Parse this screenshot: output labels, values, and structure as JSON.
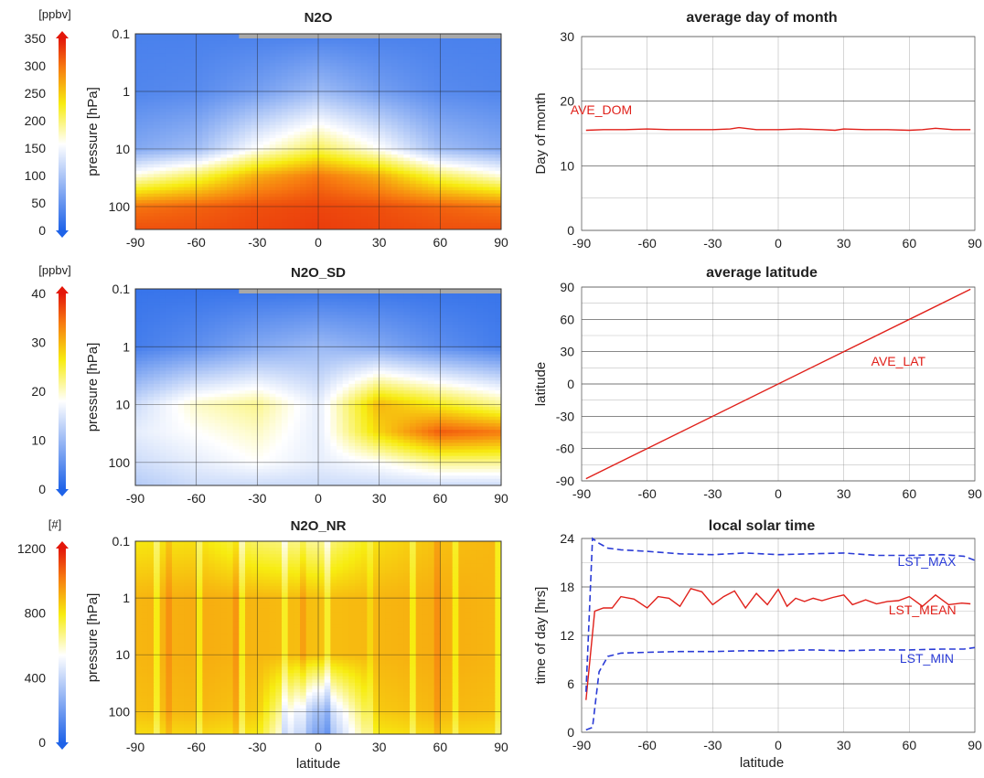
{
  "colors": {
    "heat_low": "#1f63e8",
    "heat_mid": "#ffffff",
    "heat_yellow": "#f7ec10",
    "heat_orange": "#f77a10",
    "heat_high": "#e3170a",
    "line_red": "#e0201a",
    "line_blue": "#2a3bd6",
    "grid": "#8c8c8c",
    "grid_dark": "#222222",
    "missing": "#a8a8a8"
  },
  "chart_data": [
    {
      "id": "n2o",
      "type": "heatmap",
      "title": "N2O",
      "xlabel": "",
      "ylabel": "pressure [hPa]",
      "x_ticks": [
        "-90",
        "-60",
        "-30",
        "0",
        "30",
        "60",
        "90"
      ],
      "y_ticks": [
        "0.1",
        "1",
        "10",
        "100"
      ],
      "xlim": [
        -90,
        90
      ],
      "ylim_pressure_hPa": [
        0.1,
        250
      ],
      "y_scale": "log",
      "colorbar": {
        "unit": "[ppbv]",
        "ticks": [
          "350",
          "300",
          "250",
          "200",
          "150",
          "100",
          "50",
          "0"
        ],
        "range": [
          0,
          350
        ]
      },
      "cells": [
        {
          "p": 0.1,
          "values": [
            30,
            30,
            30,
            30,
            30,
            30,
            30
          ]
        },
        {
          "p": 1,
          "values": [
            35,
            40,
            60,
            90,
            60,
            40,
            35
          ]
        },
        {
          "p": 10,
          "values": [
            70,
            90,
            160,
            210,
            160,
            90,
            70
          ]
        },
        {
          "p": 30,
          "values": [
            170,
            210,
            270,
            300,
            270,
            210,
            170
          ]
        },
        {
          "p": 100,
          "values": [
            300,
            310,
            320,
            325,
            320,
            310,
            300
          ]
        },
        {
          "p": 250,
          "values": [
            320,
            320,
            325,
            330,
            325,
            320,
            320
          ]
        }
      ]
    },
    {
      "id": "n2o_sd",
      "type": "heatmap",
      "title": "N2O_SD",
      "xlabel": "",
      "ylabel": "pressure [hPa]",
      "x_ticks": [
        "-90",
        "-60",
        "-30",
        "0",
        "30",
        "60",
        "90"
      ],
      "y_ticks": [
        "0.1",
        "1",
        "10",
        "100"
      ],
      "xlim": [
        -90,
        90
      ],
      "ylim_pressure_hPa": [
        0.1,
        250
      ],
      "y_scale": "log",
      "colorbar": {
        "unit": "[ppbv]",
        "ticks": [
          "40",
          "30",
          "20",
          "10",
          "0"
        ],
        "range": [
          0,
          40
        ]
      },
      "cells": [
        {
          "p": 0.1,
          "values": [
            2,
            2,
            2,
            2,
            2,
            2,
            2
          ]
        },
        {
          "p": 1,
          "values": [
            3,
            5,
            8,
            10,
            8,
            5,
            3
          ]
        },
        {
          "p": 10,
          "values": [
            14,
            20,
            22,
            16,
            30,
            26,
            22
          ]
        },
        {
          "p": 30,
          "values": [
            16,
            18,
            20,
            16,
            28,
            36,
            34
          ]
        },
        {
          "p": 100,
          "values": [
            14,
            16,
            18,
            16,
            18,
            22,
            22
          ]
        },
        {
          "p": 250,
          "values": [
            12,
            14,
            14,
            14,
            14,
            14,
            14
          ]
        }
      ]
    },
    {
      "id": "n2o_nr",
      "type": "heatmap",
      "title": "N2O_NR",
      "xlabel": "latitude",
      "ylabel": "pressure [hPa]",
      "x_ticks": [
        "-90",
        "-60",
        "-30",
        "0",
        "30",
        "60",
        "90"
      ],
      "y_ticks": [
        "0.1",
        "1",
        "10",
        "100"
      ],
      "xlim": [
        -90,
        90
      ],
      "ylim_pressure_hPa": [
        0.1,
        250
      ],
      "y_scale": "log",
      "colorbar": {
        "unit": "[#]",
        "ticks": [
          "1200",
          "800",
          "400",
          "0"
        ],
        "range": [
          0,
          1200
        ]
      },
      "cells": [
        {
          "p": 0.1,
          "values": [
            800,
            820,
            700,
            650,
            820,
            880,
            900
          ]
        },
        {
          "p": 1,
          "values": [
            900,
            920,
            900,
            880,
            900,
            920,
            900
          ]
        },
        {
          "p": 10,
          "values": [
            900,
            920,
            900,
            880,
            900,
            920,
            900
          ]
        },
        {
          "p": 100,
          "values": [
            880,
            900,
            860,
            300,
            860,
            900,
            880
          ]
        },
        {
          "p": 250,
          "values": [
            820,
            840,
            800,
            200,
            800,
            840,
            820
          ]
        }
      ]
    },
    {
      "id": "dom",
      "type": "line",
      "title": "average day of month",
      "xlabel": "",
      "ylabel": "Day of month",
      "x_ticks": [
        "-90",
        "-60",
        "-30",
        "0",
        "30",
        "60",
        "90"
      ],
      "y_ticks": [
        "0",
        "10",
        "20",
        "30"
      ],
      "xlim": [
        -90,
        90
      ],
      "ylim": [
        0,
        30
      ],
      "series": [
        {
          "name": "AVE_DOM",
          "color": "line_red",
          "dash": false,
          "x": [
            -88,
            -80,
            -70,
            -60,
            -50,
            -40,
            -30,
            -22,
            -18,
            -10,
            0,
            10,
            20,
            26,
            30,
            40,
            50,
            60,
            66,
            72,
            80,
            88
          ],
          "y": [
            15.5,
            15.6,
            15.6,
            15.7,
            15.6,
            15.6,
            15.6,
            15.7,
            15.9,
            15.6,
            15.6,
            15.7,
            15.6,
            15.5,
            15.7,
            15.6,
            15.6,
            15.5,
            15.6,
            15.8,
            15.6,
            15.6
          ]
        }
      ],
      "annotations": [
        {
          "text": "AVE_DOM",
          "x": -81,
          "y": 18.0,
          "color": "line_red"
        }
      ]
    },
    {
      "id": "lat",
      "type": "line",
      "title": "average latitude",
      "xlabel": "",
      "ylabel": "latitude",
      "x_ticks": [
        "-90",
        "-60",
        "-30",
        "0",
        "30",
        "60",
        "90"
      ],
      "y_ticks": [
        "-90",
        "-60",
        "-30",
        "0",
        "30",
        "60",
        "90"
      ],
      "xlim": [
        -90,
        90
      ],
      "ylim": [
        -90,
        90
      ],
      "series": [
        {
          "name": "AVE_LAT",
          "color": "line_red",
          "dash": false,
          "x": [
            -88,
            88
          ],
          "y": [
            -88,
            88
          ]
        }
      ],
      "annotations": [
        {
          "text": "AVE_LAT",
          "x": 55,
          "y": 17,
          "color": "line_red"
        }
      ]
    },
    {
      "id": "lst",
      "type": "line",
      "title": "local solar time",
      "xlabel": "latitude",
      "ylabel": "time of day [hrs]",
      "x_ticks": [
        "-90",
        "-60",
        "-30",
        "0",
        "30",
        "60",
        "90"
      ],
      "y_ticks": [
        "0",
        "6",
        "12",
        "18",
        "24"
      ],
      "xlim": [
        -90,
        90
      ],
      "ylim": [
        0,
        24
      ],
      "series": [
        {
          "name": "LST_MEAN",
          "color": "line_red",
          "dash": false,
          "x": [
            -88,
            -84,
            -80,
            -76,
            -72,
            -66,
            -60,
            -55,
            -50,
            -45,
            -40,
            -35,
            -30,
            -25,
            -20,
            -15,
            -10,
            -5,
            0,
            4,
            8,
            12,
            16,
            20,
            25,
            30,
            34,
            40,
            45,
            50,
            55,
            60,
            66,
            72,
            78,
            84,
            88
          ],
          "y": [
            4,
            15,
            15.4,
            15.4,
            16.8,
            16.5,
            15.4,
            16.8,
            16.6,
            15.6,
            17.8,
            17.4,
            15.8,
            16.8,
            17.5,
            15.4,
            17.2,
            15.8,
            17.7,
            15.6,
            16.6,
            16.2,
            16.6,
            16.3,
            16.7,
            17,
            15.8,
            16.4,
            15.9,
            16.2,
            16.3,
            16.8,
            15.6,
            17,
            15.8,
            16,
            15.9
          ]
        },
        {
          "name": "LST_MAX",
          "color": "line_blue",
          "dash": true,
          "x": [
            -88,
            -85,
            -82,
            -78,
            -72,
            -60,
            -45,
            -30,
            -15,
            0,
            15,
            30,
            45,
            60,
            75,
            85,
            90
          ],
          "y": [
            5,
            24,
            23.4,
            22.8,
            22.6,
            22.4,
            22.1,
            22,
            22.2,
            22,
            22.1,
            22.2,
            21.9,
            21.9,
            22,
            21.8,
            21.3
          ]
        },
        {
          "name": "LST_MIN",
          "color": "line_blue",
          "dash": true,
          "x": [
            -88,
            -85,
            -82,
            -78,
            -72,
            -60,
            -45,
            -30,
            -15,
            0,
            15,
            30,
            45,
            60,
            75,
            85,
            90
          ],
          "y": [
            0.3,
            0.6,
            7.5,
            9.4,
            9.8,
            9.9,
            10,
            10,
            10.1,
            10.1,
            10.2,
            10.1,
            10.2,
            10.2,
            10.3,
            10.3,
            10.5
          ]
        }
      ],
      "annotations": [
        {
          "text": "LST_MAX",
          "x": 68,
          "y": 20.6,
          "color": "line_blue"
        },
        {
          "text": "LST_MEAN",
          "x": 66,
          "y": 14.6,
          "color": "line_red"
        },
        {
          "text": "LST_MIN",
          "x": 68,
          "y": 8.6,
          "color": "line_blue"
        }
      ]
    }
  ]
}
